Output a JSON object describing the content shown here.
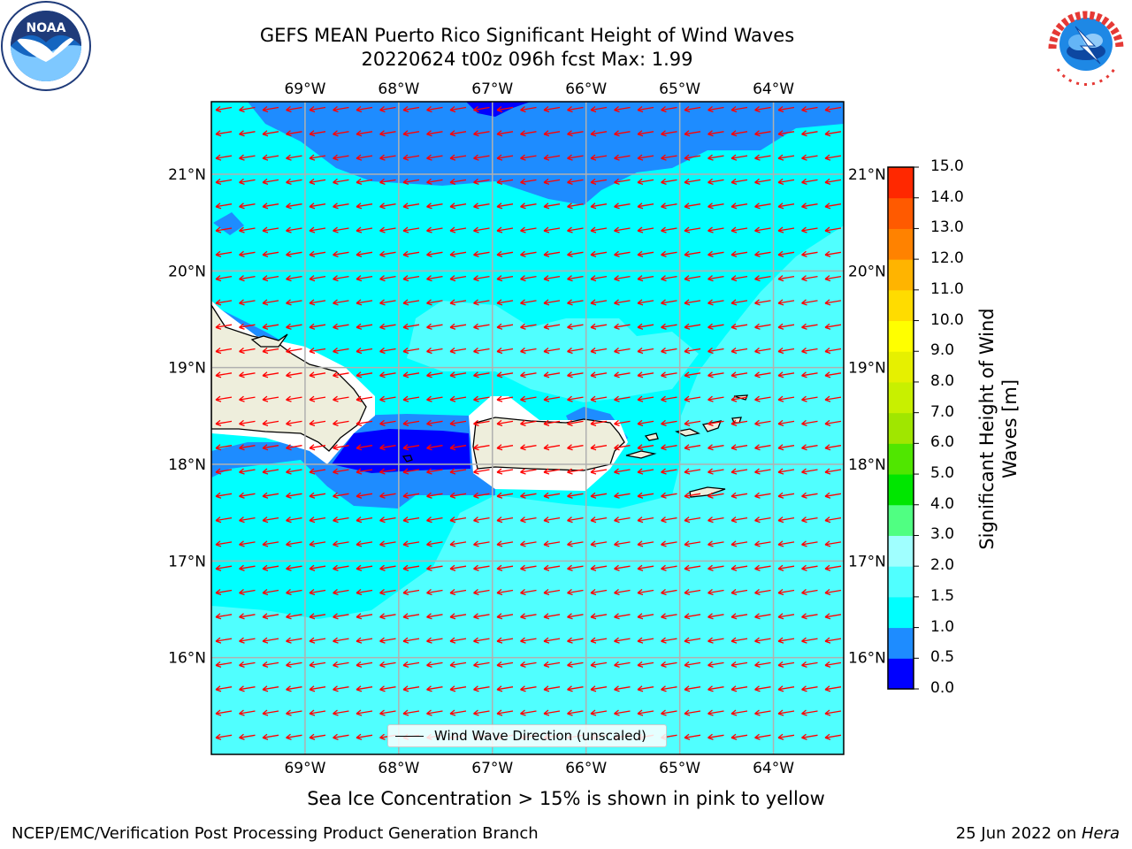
{
  "title": {
    "line1": "GEFS MEAN Puerto Rico Significant Height of Wind Waves",
    "line2": "20220624 t00z 096h fcst   Max: 1.99"
  },
  "logos": {
    "left": "noaa-logo",
    "left_text": "NOAA",
    "right": "nws-logo"
  },
  "map": {
    "lon_labels": [
      "69°W",
      "68°W",
      "67°W",
      "66°W",
      "65°W",
      "64°W"
    ],
    "lat_labels": [
      "21°N",
      "20°N",
      "19°N",
      "18°N",
      "17°N",
      "16°N"
    ],
    "extent": {
      "lon_min": -70.0,
      "lon_max": -63.25,
      "lat_min": 15.0,
      "lat_max": 21.75
    },
    "arrow_color": "#ff0000",
    "land_color": "#eeeedc",
    "wind_direction": "toward west-southwest"
  },
  "legend": {
    "label": "Wind Wave Direction (unscaled)"
  },
  "colorbar": {
    "title_line1": "Significant Height of Wind",
    "title_line2": "Waves [m]",
    "ticks": [
      "0.0",
      "0.5",
      "1.0",
      "1.5",
      "2.0",
      "3.0",
      "4.0",
      "5.0",
      "6.0",
      "7.0",
      "8.0",
      "9.0",
      "10.0",
      "11.0",
      "12.0",
      "13.0",
      "14.0",
      "15.0"
    ],
    "colors": [
      "#0000ff",
      "#1e8cff",
      "#00ffff",
      "#50ffff",
      "#a0ffff",
      "#50ff82",
      "#00e600",
      "#50e600",
      "#a0e600",
      "#c8f000",
      "#e6f000",
      "#ffff00",
      "#ffdc00",
      "#ffb400",
      "#ff8200",
      "#ff5a00",
      "#ff2800",
      "#ff0000"
    ]
  },
  "caption": "Sea Ice Concentration > 15% is shown in pink to yellow",
  "footer": {
    "left": "NCEP/EMC/Verification Post Processing Product Generation Branch",
    "right_date": "25 Jun 2022 on ",
    "right_host": "Hera"
  }
}
